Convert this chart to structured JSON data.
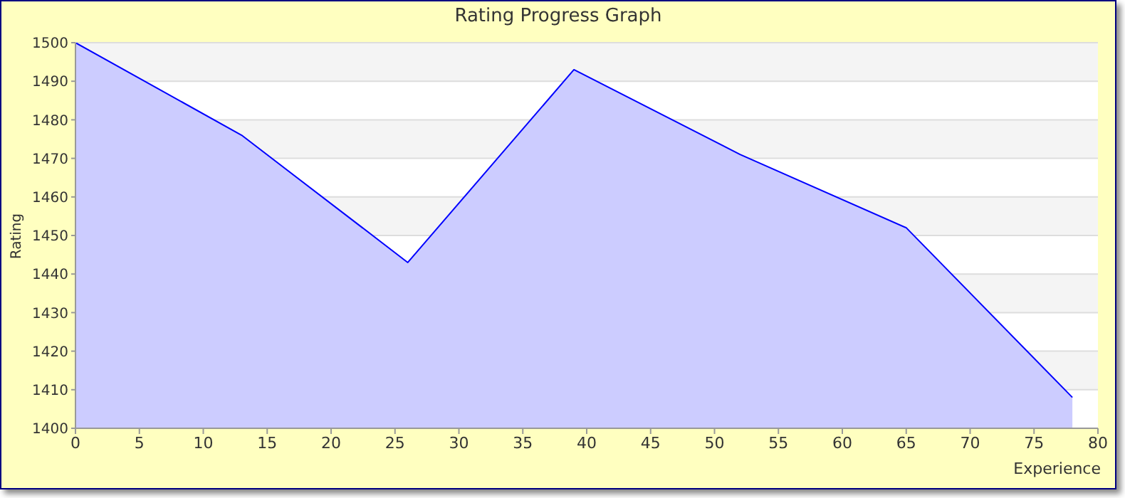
{
  "chart_data": {
    "type": "area",
    "title": "Rating Progress Graph",
    "xlabel": "Experience",
    "ylabel": "Rating",
    "x": [
      0,
      13,
      26,
      39,
      52,
      65,
      78
    ],
    "series": [
      {
        "color": "#0000ff",
        "values": [
          1500,
          1476,
          1443,
          1493,
          1471,
          1452,
          1408
        ]
      }
    ],
    "xlim": [
      0,
      80
    ],
    "xticks": [
      0,
      5,
      10,
      15,
      20,
      25,
      30,
      35,
      40,
      45,
      50,
      55,
      60,
      65,
      70,
      75,
      80
    ],
    "ylim": [
      1400,
      1500
    ],
    "yticks": [
      1400,
      1410,
      1420,
      1430,
      1440,
      1450,
      1460,
      1470,
      1480,
      1490,
      1500
    ],
    "grid": "y",
    "marker": "none"
  }
}
